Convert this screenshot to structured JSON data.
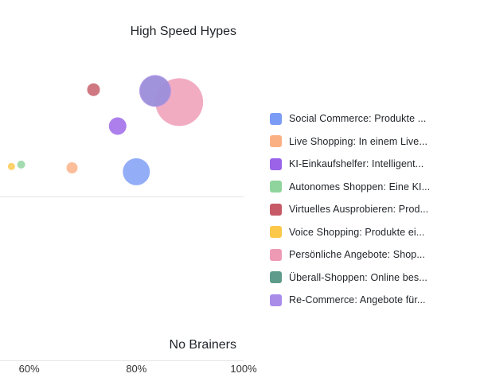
{
  "chart_data": {
    "type": "scatter",
    "subtype": "bubble",
    "quadrant_labels": {
      "top": "High Speed Hypes",
      "bottom": "No Brainers"
    },
    "xlim": [
      0.4,
      1.0
    ],
    "ylim": [
      0,
      1
    ],
    "x_ticks": [
      "60%",
      "80%",
      "100%"
    ],
    "x_tick_values": [
      0.6,
      0.8,
      1.0
    ],
    "midline_y": 0.5,
    "legend_position": "right",
    "series": [
      {
        "name": "Social Commerce: Produkte ...",
        "color": "#7b9cf5",
        "x": 0.8,
        "y": 0.574,
        "r": 17
      },
      {
        "name": "Live Shopping: In einem Live...",
        "color": "#fbb084",
        "x": 0.68,
        "y": 0.586,
        "r": 7
      },
      {
        "name": "KI-Einkaufshelfer: Intelligent...",
        "color": "#9a63e8",
        "x": 0.765,
        "y": 0.713,
        "r": 11
      },
      {
        "name": "Autonomes Shoppen: Eine KI...",
        "color": "#8fd49c",
        "x": 0.585,
        "y": 0.596,
        "r": 5
      },
      {
        "name": "Virtuelles Ausprobieren: Prod...",
        "color": "#c65a66",
        "x": 0.72,
        "y": 0.824,
        "r": 8
      },
      {
        "name": "Voice Shopping: Produkte ei...",
        "color": "#fcc84a",
        "x": 0.567,
        "y": 0.59,
        "r": 4.5
      },
      {
        "name": "Persönliche Angebote: Shop...",
        "color": "#ee9ab5",
        "x": 0.88,
        "y": 0.786,
        "r": 30
      },
      {
        "name": "Überall-Shoppen: Online bes...",
        "color": "#5e9b8a",
        "x": 0.835,
        "y": 0.82,
        "r": 19
      },
      {
        "name": "Re-Commerce: Angebote für...",
        "color": "#a88ce8",
        "x": 0.835,
        "y": 0.82,
        "r": 20
      }
    ]
  }
}
